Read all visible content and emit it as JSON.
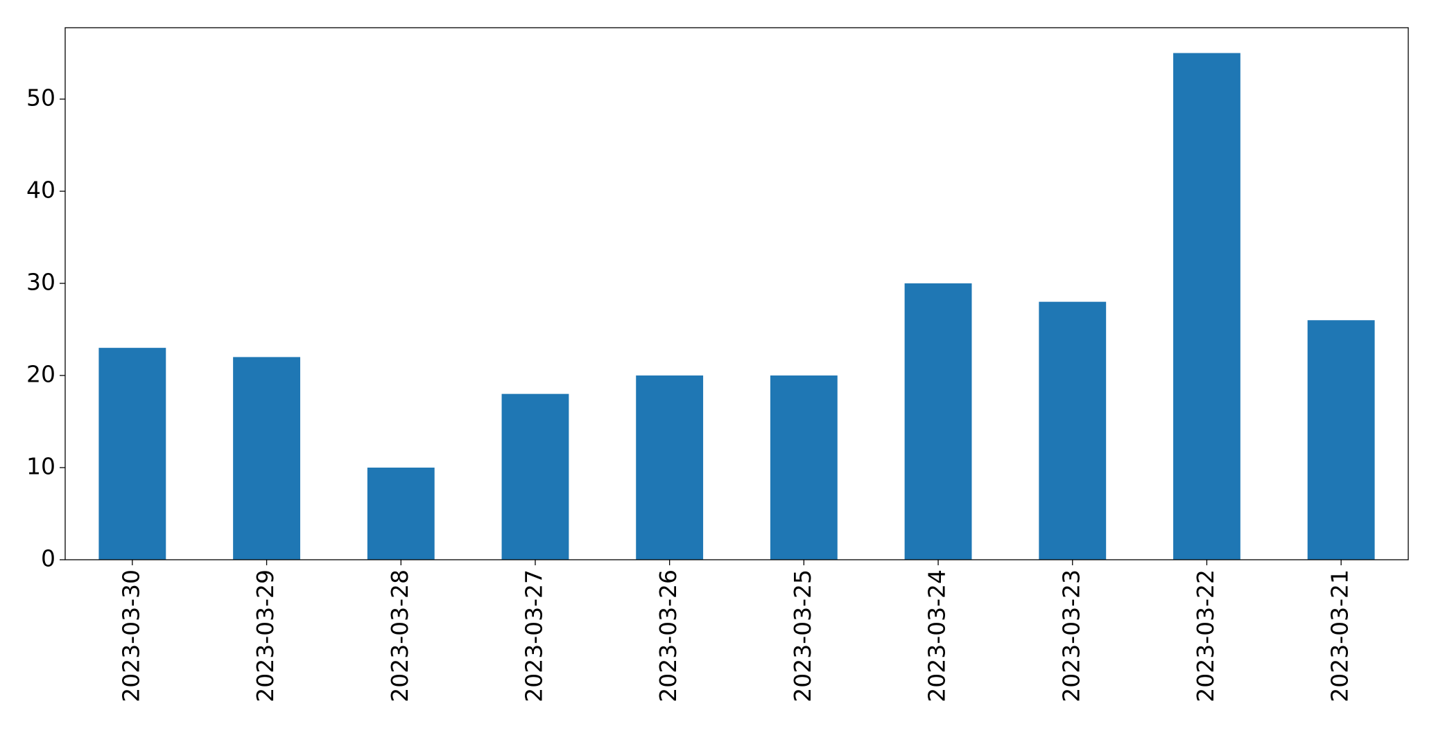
{
  "chart_data": {
    "type": "bar",
    "categories": [
      "2023-03-30",
      "2023-03-29",
      "2023-03-28",
      "2023-03-27",
      "2023-03-26",
      "2023-03-25",
      "2023-03-24",
      "2023-03-23",
      "2023-03-22",
      "2023-03-21"
    ],
    "values": [
      23,
      22,
      10,
      18,
      20,
      20,
      30,
      28,
      55,
      26
    ],
    "color": "#1f77b4",
    "ylim": [
      0,
      57.75
    ],
    "yticks": [
      0,
      10,
      20,
      30,
      40,
      50
    ],
    "grid": false
  }
}
